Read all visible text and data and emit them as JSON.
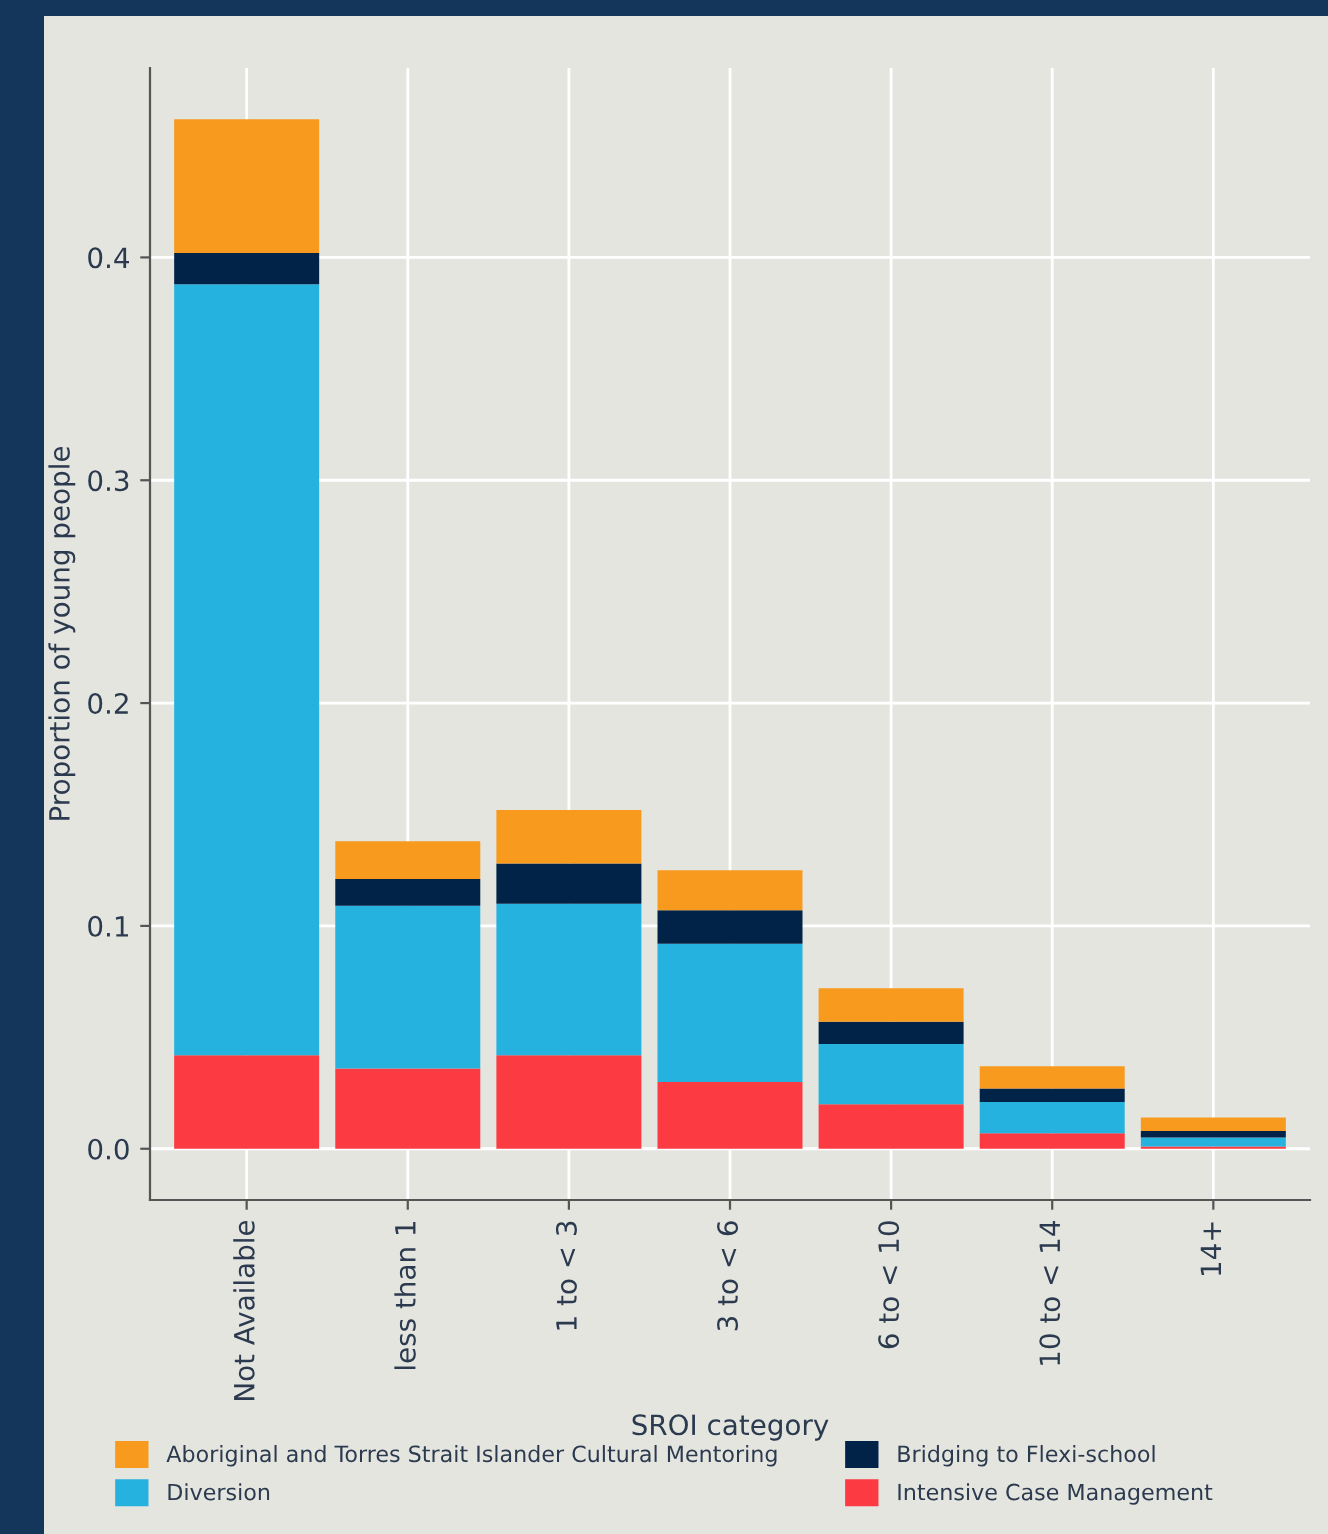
{
  "chart_data": {
    "type": "bar",
    "stacked": true,
    "xlabel": "SROI category",
    "ylabel": "Proportion of young people",
    "categories": [
      "Not Available",
      "less than 1",
      "1 to < 3",
      "3 to < 6",
      "6 to < 10",
      "10 to < 14",
      "14+"
    ],
    "series": [
      {
        "name": "Intensive Case Management",
        "color": "#fb3a41",
        "values": [
          0.042,
          0.036,
          0.042,
          0.03,
          0.02,
          0.007,
          0.001
        ]
      },
      {
        "name": "Diversion",
        "color": "#26b2df",
        "values": [
          0.346,
          0.073,
          0.068,
          0.062,
          0.027,
          0.014,
          0.004
        ]
      },
      {
        "name": "Bridging to Flexi-school",
        "color": "#022348",
        "values": [
          0.014,
          0.012,
          0.018,
          0.015,
          0.01,
          0.006,
          0.003
        ]
      },
      {
        "name": "Aboriginal and Torres Strait Islander Cultural Mentoring",
        "color": "#f79a1e",
        "values": [
          0.06,
          0.017,
          0.024,
          0.018,
          0.015,
          0.01,
          0.006
        ]
      }
    ],
    "ylim": [
      -0.023,
      0.485
    ],
    "yticks": [
      {
        "value": 0,
        "label": "0.0"
      },
      0.1,
      0.2,
      0.3,
      0.4
    ],
    "grid": true,
    "legend": "bottom"
  }
}
